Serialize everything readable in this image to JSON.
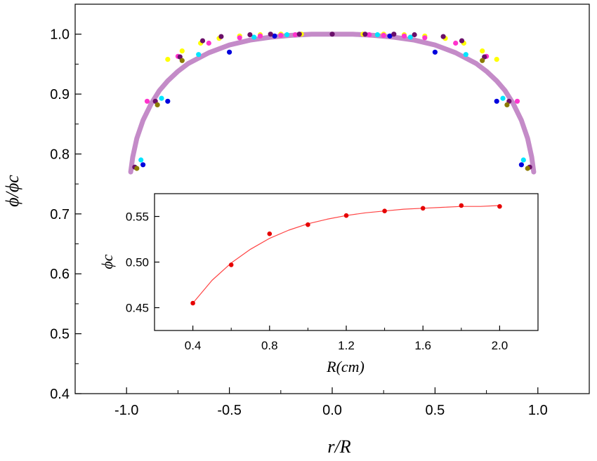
{
  "chart_data": [
    {
      "type": "scatter",
      "role": "main",
      "xlabel": "r/R",
      "ylabel": "ϕ/ϕc",
      "xlim": [
        -1.25,
        1.25
      ],
      "ylim": [
        0.4,
        1.05
      ],
      "x_ticks": [
        "-1.0",
        "-0.5",
        "0.0",
        "0.5",
        "1.0"
      ],
      "x_tick_values": [
        -1.0,
        -0.5,
        0.0,
        0.5,
        1.0
      ],
      "y_ticks": [
        "0.4",
        "0.5",
        "0.6",
        "0.7",
        "0.8",
        "0.9",
        "1.0"
      ],
      "y_tick_values": [
        0.4,
        0.5,
        0.6,
        0.7,
        0.8,
        0.9,
        1.0
      ],
      "grid": false,
      "legend": "none",
      "fit_curve": {
        "color": "#c48bc8",
        "x": [
          -0.98,
          -0.97,
          -0.95,
          -0.92,
          -0.88,
          -0.84,
          -0.8,
          -0.75,
          -0.7,
          -0.6,
          -0.5,
          -0.4,
          -0.3,
          -0.2,
          -0.1,
          0.0,
          0.1,
          0.2,
          0.3,
          0.4,
          0.5,
          0.6,
          0.7,
          0.75,
          0.8,
          0.84,
          0.88,
          0.92,
          0.95,
          0.97,
          0.98
        ],
        "y": [
          0.77,
          0.795,
          0.826,
          0.856,
          0.884,
          0.906,
          0.922,
          0.938,
          0.951,
          0.969,
          0.982,
          0.99,
          0.995,
          0.998,
          1.0,
          1.0,
          1.0,
          0.998,
          0.995,
          0.99,
          0.982,
          0.969,
          0.951,
          0.938,
          0.922,
          0.906,
          0.884,
          0.856,
          0.826,
          0.795,
          0.77
        ]
      },
      "series": [
        {
          "color": "#ffff00",
          "x": [
            -0.8,
            -0.73,
            -0.64,
            -0.55,
            -0.45,
            -0.35,
            -0.25,
            -0.15,
            0.15,
            0.25,
            0.35,
            0.45,
            0.55,
            0.64,
            0.73,
            0.8
          ],
          "y": [
            0.958,
            0.972,
            0.985,
            0.993,
            0.997,
            0.999,
            1.0,
            1.0,
            1.0,
            1.0,
            0.999,
            0.997,
            0.993,
            0.985,
            0.972,
            0.958
          ]
        },
        {
          "color": "#ff33cc",
          "x": [
            -0.9,
            -0.75,
            -0.6,
            -0.45,
            -0.35,
            -0.25,
            -0.18,
            0.18,
            0.25,
            0.35,
            0.45,
            0.6,
            0.75,
            0.9
          ],
          "y": [
            0.888,
            0.963,
            0.985,
            0.994,
            0.997,
            0.998,
            0.999,
            0.999,
            0.998,
            0.997,
            0.994,
            0.985,
            0.963,
            0.888
          ]
        },
        {
          "color": "#00e5ff",
          "x": [
            -0.93,
            -0.83,
            -0.65,
            -0.38,
            -0.22,
            0.22,
            0.38,
            0.65,
            0.83,
            0.93
          ],
          "y": [
            0.79,
            0.893,
            0.966,
            0.995,
            0.999,
            0.999,
            0.995,
            0.966,
            0.893,
            0.79
          ]
        },
        {
          "color": "#0000dd",
          "x": [
            -0.92,
            -0.8,
            -0.5,
            -0.28,
            0.28,
            0.5,
            0.8,
            0.92
          ],
          "y": [
            0.782,
            0.888,
            0.97,
            0.997,
            0.997,
            0.97,
            0.888,
            0.782
          ]
        },
        {
          "color": "#6a0f6a",
          "x": [
            -0.96,
            -0.86,
            -0.74,
            -0.63,
            -0.54,
            -0.4,
            -0.3,
            -0.16,
            0.0,
            0.16,
            0.3,
            0.4,
            0.54,
            0.63,
            0.74,
            0.86,
            0.96
          ],
          "y": [
            0.778,
            0.888,
            0.962,
            0.989,
            0.996,
            0.999,
            1.0,
            1.0,
            1.0,
            1.0,
            1.0,
            0.999,
            0.996,
            0.989,
            0.962,
            0.888,
            0.778
          ]
        },
        {
          "color": "#8b7a00",
          "x": [
            -0.95,
            -0.85,
            -0.73,
            0.73,
            0.85,
            0.95
          ],
          "y": [
            0.776,
            0.882,
            0.956,
            0.956,
            0.882,
            0.776
          ]
        }
      ]
    },
    {
      "type": "scatter",
      "role": "inset",
      "xlabel": "R(cm)",
      "ylabel": "ϕc",
      "xlim": [
        0.2,
        2.2
      ],
      "ylim": [
        0.425,
        0.575
      ],
      "x_ticks": [
        "0.4",
        "0.8",
        "1.2",
        "1.6",
        "2.0"
      ],
      "x_tick_values": [
        0.4,
        0.8,
        1.2,
        1.6,
        2.0
      ],
      "y_ticks": [
        "0.45",
        "0.50",
        "0.55"
      ],
      "y_tick_values": [
        0.45,
        0.5,
        0.55
      ],
      "grid": false,
      "legend": "none",
      "series": [
        {
          "color": "#e60000",
          "x": [
            0.4,
            0.6,
            0.8,
            1.0,
            1.2,
            1.4,
            1.6,
            1.8,
            2.0
          ],
          "y": [
            0.455,
            0.497,
            0.531,
            0.541,
            0.551,
            0.556,
            0.559,
            0.562,
            0.561
          ]
        }
      ],
      "fit_curve": {
        "color": "#ff4444",
        "x": [
          0.4,
          0.5,
          0.6,
          0.7,
          0.8,
          0.9,
          1.0,
          1.1,
          1.2,
          1.3,
          1.4,
          1.5,
          1.6,
          1.7,
          1.8,
          1.9,
          2.0
        ],
        "y": [
          0.455,
          0.48,
          0.499,
          0.514,
          0.526,
          0.535,
          0.542,
          0.547,
          0.551,
          0.554,
          0.556,
          0.558,
          0.559,
          0.56,
          0.561,
          0.561,
          0.562
        ]
      }
    }
  ]
}
